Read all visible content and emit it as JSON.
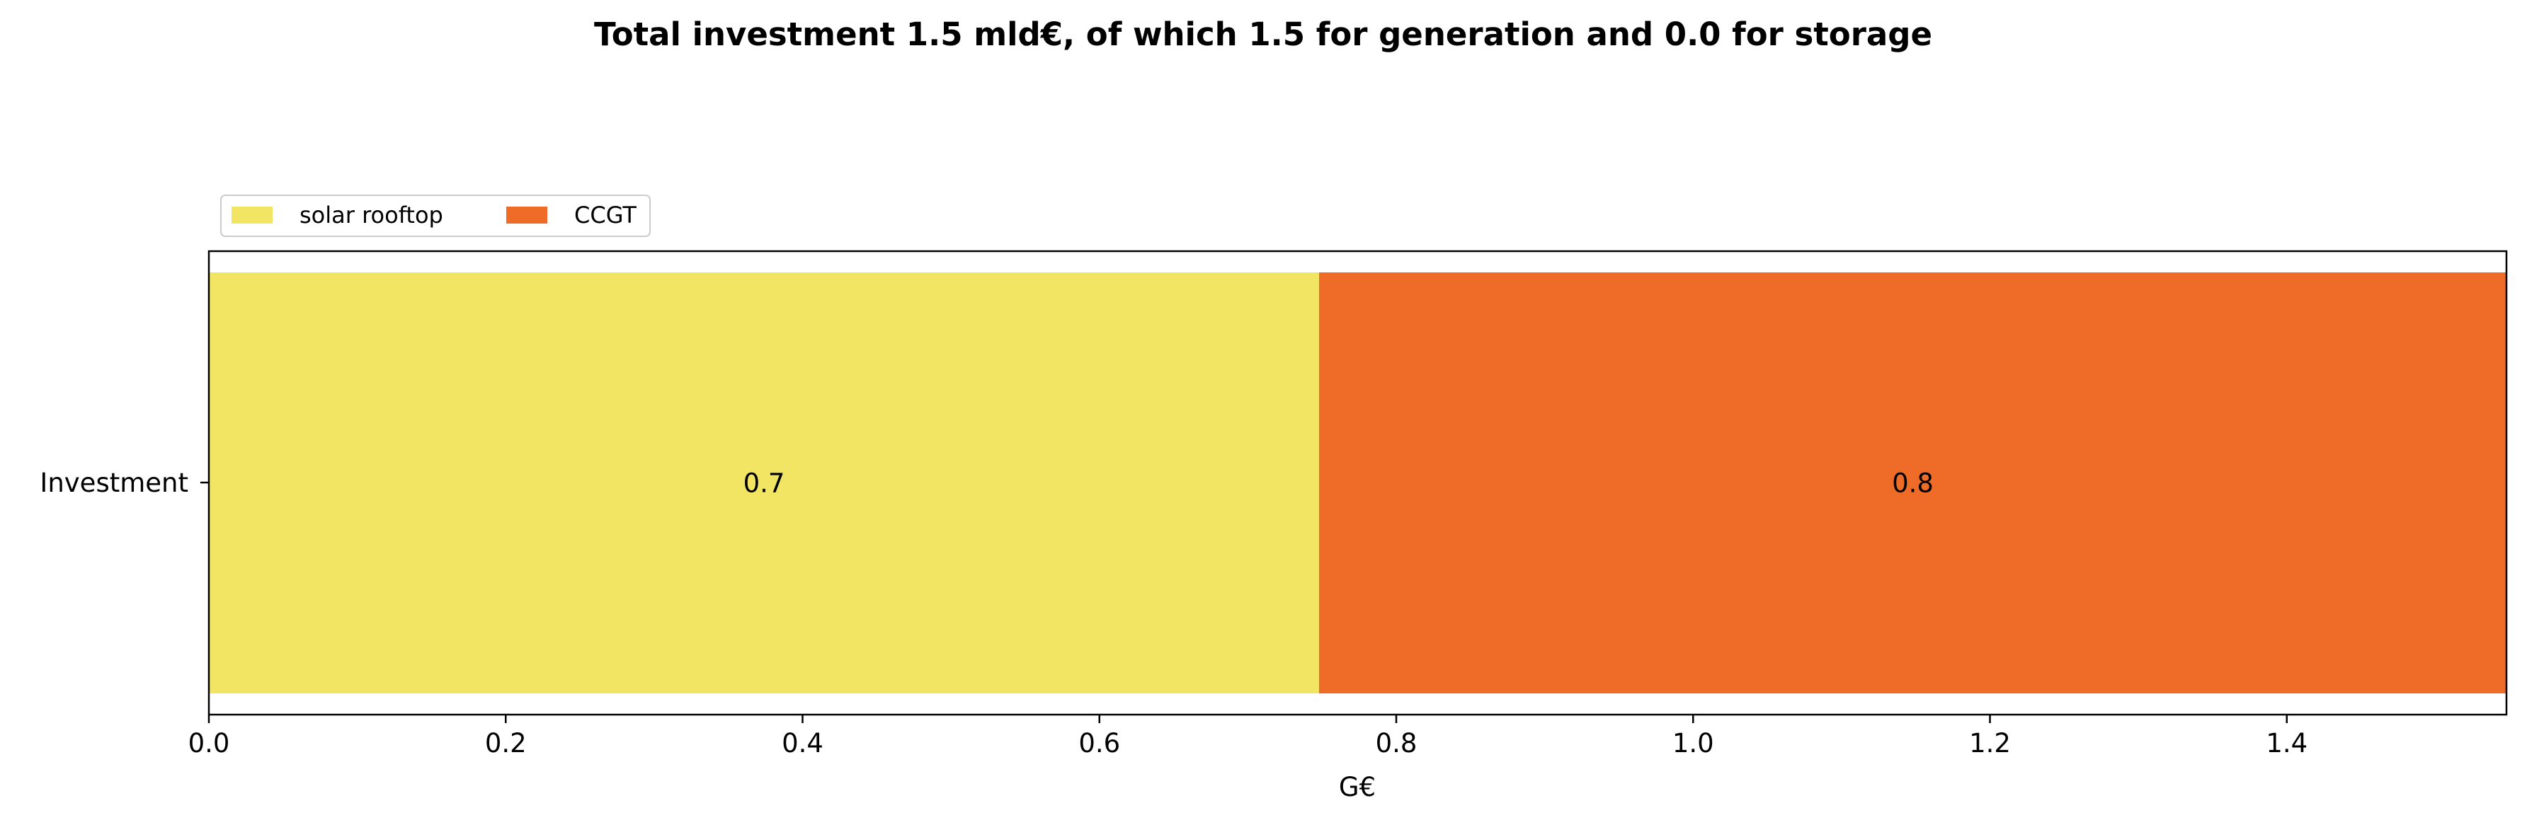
{
  "chart_data": {
    "type": "bar",
    "orientation": "horizontal",
    "stacked": true,
    "title": "Total investment 1.5 mld€, of which 1.5 for generation and 0.0 for storage",
    "xlabel": "G€",
    "ylabel": "",
    "categories": [
      "Investment"
    ],
    "series": [
      {
        "name": "solar rooftop",
        "values": [
          0.748
        ],
        "label": "0.7",
        "color": "#f2e563"
      },
      {
        "name": "CCGT",
        "values": [
          0.8
        ],
        "label": "0.8",
        "color": "#ee6b28"
      }
    ],
    "xlim": [
      0,
      1.548
    ],
    "xticks": [
      0.0,
      0.2,
      0.4,
      0.6,
      0.8,
      1.0,
      1.2,
      1.4
    ],
    "xtick_labels": [
      "0.0",
      "0.2",
      "0.4",
      "0.6",
      "0.8",
      "1.0",
      "1.2",
      "1.4"
    ],
    "grid": false,
    "legend_position": "top-left, above plot",
    "legend_columns": 2
  }
}
